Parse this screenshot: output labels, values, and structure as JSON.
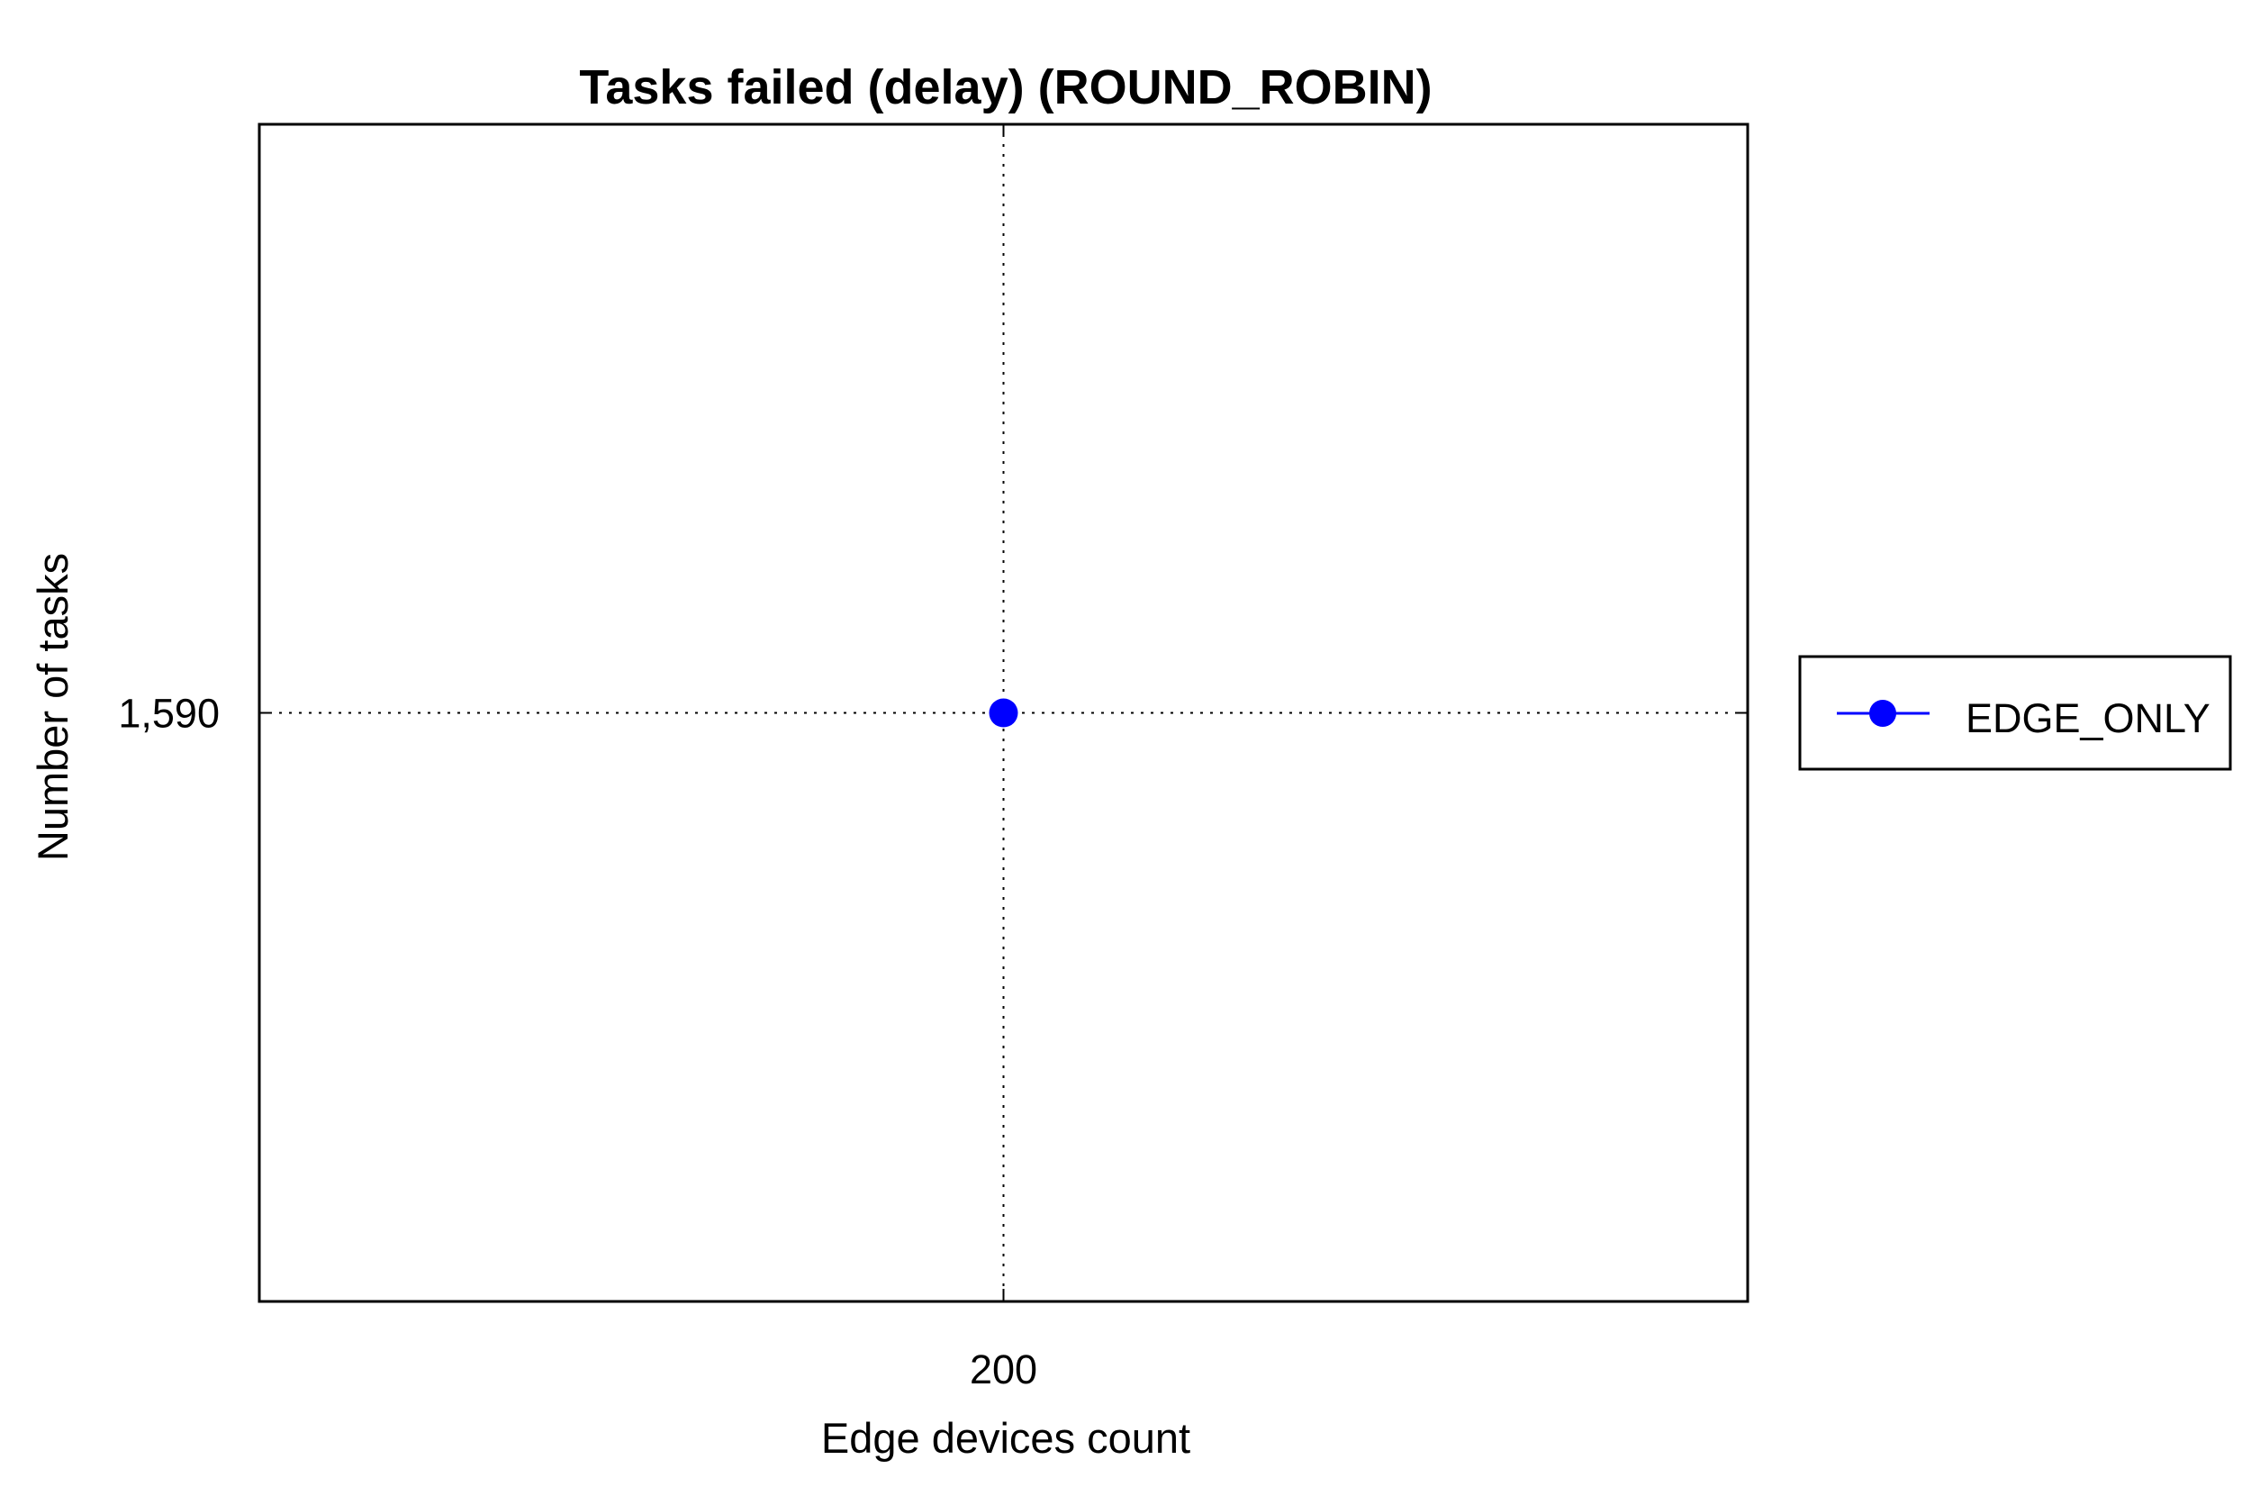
{
  "chart_data": {
    "type": "line",
    "title": "Tasks failed (delay) (ROUND_ROBIN)",
    "xlabel": "Edge devices count",
    "ylabel": "Number of tasks",
    "x": [
      200
    ],
    "x_tick_labels": [
      "200"
    ],
    "y_tick_values": [
      1590
    ],
    "y_tick_labels": [
      "1,590"
    ],
    "series": [
      {
        "name": "EDGE_ONLY",
        "color": "#0000ff",
        "x": [
          200
        ],
        "y": [
          1590
        ],
        "marker": "circle"
      }
    ],
    "grid": true,
    "grid_style": "dotted",
    "legend_position": "right"
  }
}
